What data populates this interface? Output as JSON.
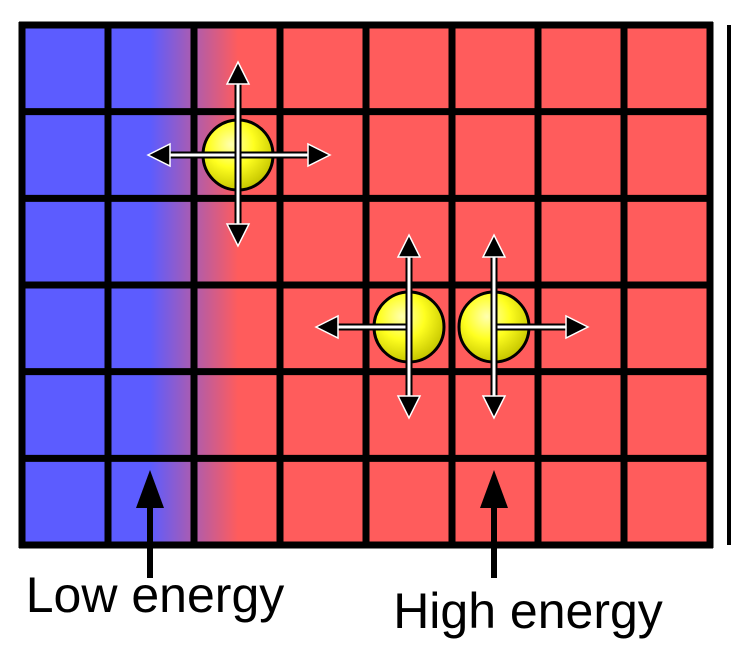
{
  "labels": {
    "low": "Low energy",
    "high": "High energy"
  }
}
